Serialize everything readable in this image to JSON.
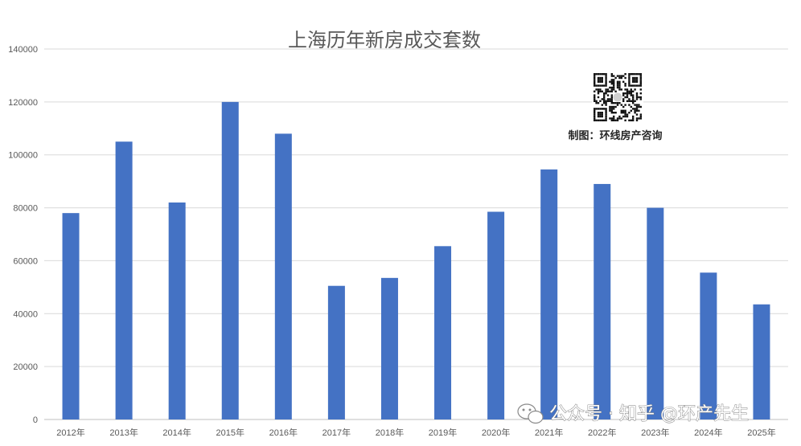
{
  "chart_data": {
    "type": "bar",
    "title": "上海历年新房成交套数",
    "categories": [
      "2012年",
      "2013年",
      "2014年",
      "2015年",
      "2016年",
      "2017年",
      "2018年",
      "2019年",
      "2020年",
      "2021年",
      "2022年",
      "2023年",
      "2024年",
      "2025年"
    ],
    "values": [
      78000,
      105000,
      82000,
      120000,
      108000,
      50500,
      53500,
      65500,
      78500,
      94500,
      89000,
      80000,
      55500,
      43500
    ],
    "yticks": [
      "0",
      "20000",
      "40000",
      "60000",
      "80000",
      "100000",
      "120000",
      "140000"
    ],
    "ylim": [
      0,
      140000
    ],
    "grid": true,
    "bar_color": "#4472c4"
  },
  "credit": "制图：环线房产咨询",
  "qr_label": "qr-code",
  "watermark": {
    "icon": "wechat-icon",
    "text": "公众号 · 知乎 @环产先生"
  }
}
